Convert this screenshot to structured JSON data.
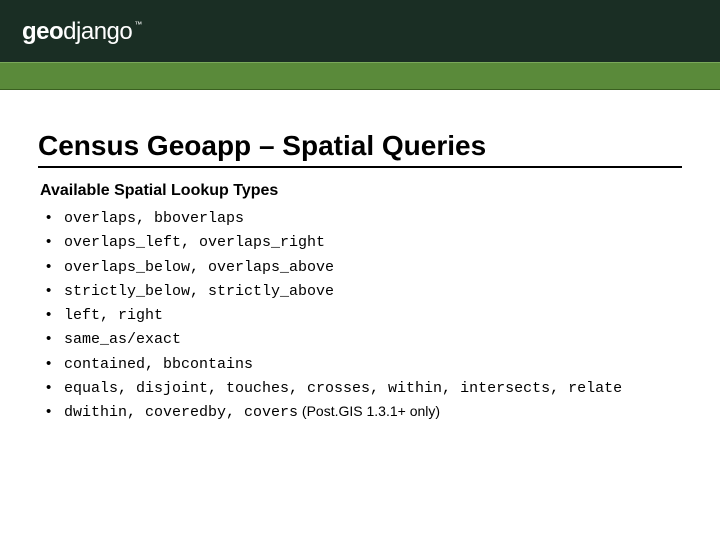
{
  "header": {
    "logo_bold": "geo",
    "logo_thin": "django",
    "logo_tm": "™",
    "dark_bg": "#1a2e24",
    "stripe_bg": "#5a8a3a"
  },
  "slide": {
    "title": "Census Geoapp – Spatial Queries",
    "subtitle": "Available Spatial Lookup Types",
    "items": [
      {
        "code": "overlaps, bboverlaps",
        "note": ""
      },
      {
        "code": "overlaps_left, overlaps_right",
        "note": ""
      },
      {
        "code": "overlaps_below, overlaps_above",
        "note": ""
      },
      {
        "code": "strictly_below, strictly_above",
        "note": ""
      },
      {
        "code": "left, right",
        "note": ""
      },
      {
        "code": "same_as/exact",
        "note": ""
      },
      {
        "code": "contained, bbcontains",
        "note": ""
      },
      {
        "code": "equals, disjoint, touches, crosses, within, intersects, relate",
        "note": ""
      },
      {
        "code": "dwithin, coveredby, covers",
        "note": " (Post.GIS 1.3.1+ only)"
      }
    ]
  },
  "style": {
    "title_fontsize": 28,
    "subtitle_fontsize": 16,
    "item_fontsize": 15,
    "text_color": "#000000",
    "background_color": "#ffffff",
    "mono_font": "Courier New"
  }
}
